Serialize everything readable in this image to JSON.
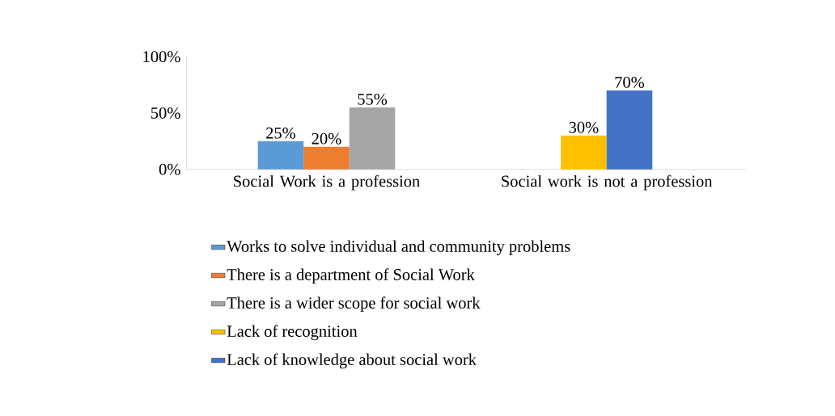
{
  "chart_data": {
    "type": "bar",
    "categories": [
      "Social Work is a profession",
      "Social work is not a profession"
    ],
    "series": [
      {
        "name": "Works to solve individual and community problems",
        "color": "#5b9bd5",
        "values": [
          25,
          null
        ],
        "value_labels": [
          "25%",
          null
        ]
      },
      {
        "name": "There is a department of Social Work",
        "color": "#ed7d31",
        "values": [
          20,
          null
        ],
        "value_labels": [
          "20%",
          null
        ]
      },
      {
        "name": "There is a wider scope for social work",
        "color": "#a5a5a5",
        "values": [
          55,
          null
        ],
        "value_labels": [
          "55%",
          null
        ]
      },
      {
        "name": "Lack of recognition",
        "color": "#ffc000",
        "values": [
          null,
          30
        ],
        "value_labels": [
          null,
          "30%"
        ]
      },
      {
        "name": "Lack of knowledge about social work",
        "color": "#4472c4",
        "values": [
          null,
          70
        ],
        "value_labels": [
          null,
          "70%"
        ]
      }
    ],
    "ylim": [
      0,
      100
    ],
    "yticks": [
      {
        "value": 0,
        "label": "0%"
      },
      {
        "value": 50,
        "label": "50%"
      },
      {
        "value": 100,
        "label": "100%"
      }
    ],
    "legend": "bottom"
  }
}
